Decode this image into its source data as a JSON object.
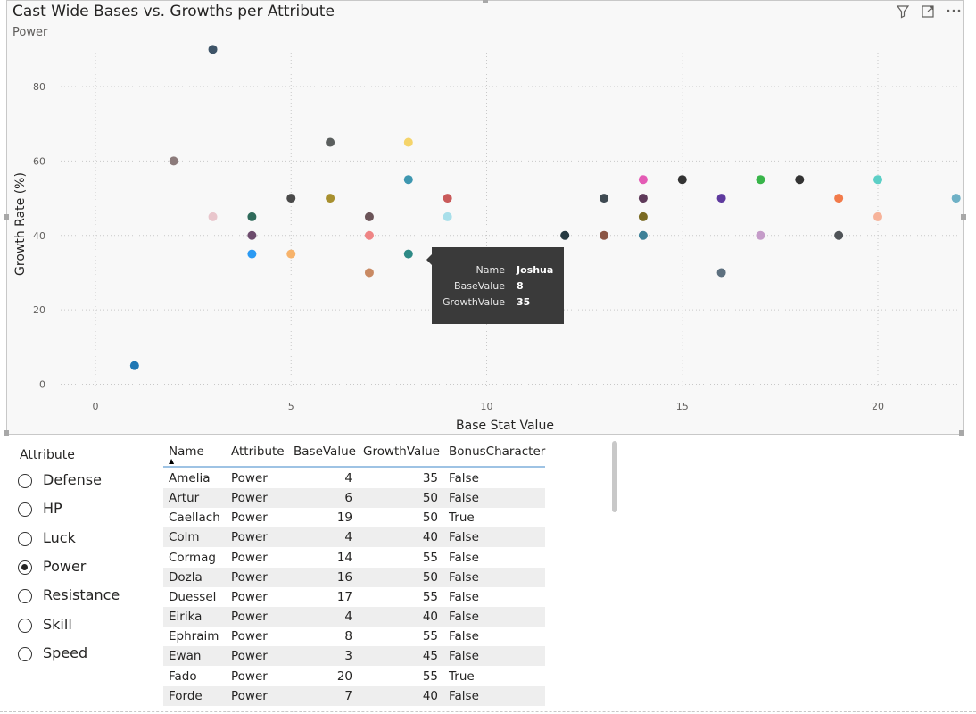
{
  "chart": {
    "title": "Cast Wide Bases vs. Growths per Attribute",
    "subtitle": "Power",
    "icons": {
      "filter": "filter-icon",
      "focus": "focus-mode-icon",
      "more": "more-options-icon"
    }
  },
  "chart_data": {
    "type": "scatter",
    "xlabel": "Base Stat Value",
    "ylabel": "Growth Rate (%)",
    "xlim": [
      -2.5,
      22
    ],
    "ylim": [
      -2,
      90
    ],
    "xticks": [
      0,
      5,
      10,
      15,
      20
    ],
    "yticks": [
      0,
      20,
      40,
      60,
      80
    ],
    "grid": true,
    "points": [
      {
        "x": 1,
        "y": 5,
        "color": "#1f77b4"
      },
      {
        "x": 2,
        "y": 60,
        "color": "#8c7b7b"
      },
      {
        "x": 3,
        "y": 90,
        "color": "#3e5468"
      },
      {
        "x": 3,
        "y": 45,
        "color": "#e9c6cc"
      },
      {
        "x": 4,
        "y": 45,
        "color": "#2f6a5a"
      },
      {
        "x": 4,
        "y": 40,
        "color": "#6d4c6d"
      },
      {
        "x": 4,
        "y": 35,
        "color": "#2b9af3"
      },
      {
        "x": 5,
        "y": 50,
        "color": "#4a4a4a"
      },
      {
        "x": 5,
        "y": 35,
        "color": "#f7b36b"
      },
      {
        "x": 6,
        "y": 65,
        "color": "#5b5f5e"
      },
      {
        "x": 6,
        "y": 50,
        "color": "#a8902f"
      },
      {
        "x": 7,
        "y": 45,
        "color": "#6b5458"
      },
      {
        "x": 7,
        "y": 40,
        "color": "#ef8585"
      },
      {
        "x": 7,
        "y": 30,
        "color": "#c98a63"
      },
      {
        "x": 8,
        "y": 65,
        "color": "#f5d46a"
      },
      {
        "x": 8,
        "y": 55,
        "color": "#3e97b0"
      },
      {
        "x": 8,
        "y": 35,
        "color": "#2e8a86"
      },
      {
        "x": 9,
        "y": 50,
        "color": "#c95a5a"
      },
      {
        "x": 9,
        "y": 45,
        "color": "#a8dfea"
      },
      {
        "x": 12,
        "y": 40,
        "color": "#263a42"
      },
      {
        "x": 13,
        "y": 50,
        "color": "#3f4a52"
      },
      {
        "x": 13,
        "y": 40,
        "color": "#8b5646"
      },
      {
        "x": 14,
        "y": 55,
        "color": "#e45bb5"
      },
      {
        "x": 14,
        "y": 50,
        "color": "#5f3a5a"
      },
      {
        "x": 14,
        "y": 45,
        "color": "#7a6a22"
      },
      {
        "x": 14,
        "y": 40,
        "color": "#3e8198"
      },
      {
        "x": 15,
        "y": 55,
        "color": "#333333"
      },
      {
        "x": 16,
        "y": 50,
        "color": "#5e3a9e"
      },
      {
        "x": 16,
        "y": 30,
        "color": "#5d707f"
      },
      {
        "x": 17,
        "y": 55,
        "color": "#39b54a"
      },
      {
        "x": 17,
        "y": 40,
        "color": "#c59cc9"
      },
      {
        "x": 18,
        "y": 55,
        "color": "#333333"
      },
      {
        "x": 19,
        "y": 50,
        "color": "#f27b4b"
      },
      {
        "x": 19,
        "y": 40,
        "color": "#505458"
      },
      {
        "x": 20,
        "y": 55,
        "color": "#5ccfc6"
      },
      {
        "x": 20,
        "y": 45,
        "color": "#f7b39a"
      },
      {
        "x": 22,
        "y": 50,
        "color": "#6fb1c6"
      }
    ],
    "tooltip": {
      "rows": [
        {
          "key": "Name",
          "value": "Joshua"
        },
        {
          "key": "BaseValue",
          "value": "8"
        },
        {
          "key": "GrowthValue",
          "value": "35"
        }
      ]
    }
  },
  "slicer": {
    "title": "Attribute",
    "options": [
      {
        "label": "Defense",
        "selected": false
      },
      {
        "label": "HP",
        "selected": false
      },
      {
        "label": "Luck",
        "selected": false
      },
      {
        "label": "Power",
        "selected": true
      },
      {
        "label": "Resistance",
        "selected": false
      },
      {
        "label": "Skill",
        "selected": false
      },
      {
        "label": "Speed",
        "selected": false
      }
    ]
  },
  "table": {
    "columns": [
      "Name",
      "Attribute",
      "BaseValue",
      "GrowthValue",
      "BonusCharacter"
    ],
    "rows": [
      [
        "Amelia",
        "Power",
        "4",
        "35",
        "False"
      ],
      [
        "Artur",
        "Power",
        "6",
        "50",
        "False"
      ],
      [
        "Caellach",
        "Power",
        "19",
        "50",
        "True"
      ],
      [
        "Colm",
        "Power",
        "4",
        "40",
        "False"
      ],
      [
        "Cormag",
        "Power",
        "14",
        "55",
        "False"
      ],
      [
        "Dozla",
        "Power",
        "16",
        "50",
        "False"
      ],
      [
        "Duessel",
        "Power",
        "17",
        "55",
        "False"
      ],
      [
        "Eirika",
        "Power",
        "4",
        "40",
        "False"
      ],
      [
        "Ephraim",
        "Power",
        "8",
        "55",
        "False"
      ],
      [
        "Ewan",
        "Power",
        "3",
        "45",
        "False"
      ],
      [
        "Fado",
        "Power",
        "20",
        "55",
        "True"
      ],
      [
        "Forde",
        "Power",
        "7",
        "40",
        "False"
      ]
    ]
  }
}
